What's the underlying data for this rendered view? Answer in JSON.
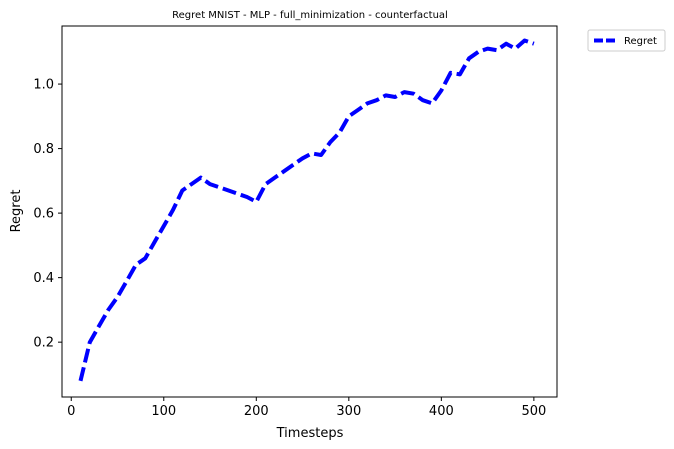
{
  "chart_data": {
    "type": "line",
    "title": "Regret MNIST - MLP - full_minimization - counterfactual",
    "xlabel": "Timesteps",
    "ylabel": "Regret",
    "xlim": [
      -10,
      525
    ],
    "ylim": [
      0.03,
      1.18
    ],
    "xticks": [
      0,
      100,
      200,
      300,
      400,
      500
    ],
    "yticks": [
      0.2,
      0.4,
      0.6,
      0.8,
      1.0
    ],
    "xtick_labels": [
      "0",
      "100",
      "200",
      "300",
      "400",
      "500"
    ],
    "ytick_labels": [
      "0.2",
      "0.4",
      "0.6",
      "0.8",
      "1.0"
    ],
    "grid": false,
    "legend_position": "outside-top-right",
    "series": [
      {
        "name": "Regret",
        "color": "#0000ff",
        "line_style": "dashed",
        "x": [
          10,
          20,
          30,
          40,
          50,
          60,
          70,
          80,
          90,
          100,
          110,
          120,
          130,
          140,
          150,
          160,
          170,
          180,
          190,
          200,
          210,
          220,
          230,
          240,
          250,
          260,
          270,
          280,
          290,
          300,
          310,
          320,
          330,
          340,
          350,
          360,
          370,
          380,
          390,
          400,
          410,
          420,
          430,
          440,
          450,
          460,
          470,
          480,
          490,
          500
        ],
        "y": [
          0.08,
          0.2,
          0.25,
          0.3,
          0.34,
          0.39,
          0.44,
          0.46,
          0.51,
          0.56,
          0.61,
          0.67,
          0.69,
          0.71,
          0.69,
          0.68,
          0.67,
          0.66,
          0.65,
          0.635,
          0.69,
          0.71,
          0.73,
          0.75,
          0.77,
          0.785,
          0.78,
          0.82,
          0.85,
          0.9,
          0.92,
          0.94,
          0.95,
          0.965,
          0.96,
          0.975,
          0.97,
          0.95,
          0.94,
          0.98,
          1.035,
          1.03,
          1.08,
          1.1,
          1.11,
          1.105,
          1.125,
          1.11,
          1.135,
          1.125
        ]
      }
    ]
  }
}
